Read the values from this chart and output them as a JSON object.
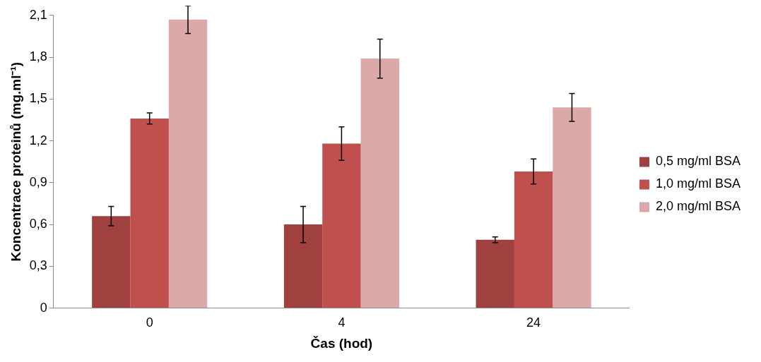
{
  "chart_data": {
    "type": "bar",
    "xlabel": "Čas (hod)",
    "ylabel": "Koncentrace proteinů (mg.ml⁻¹)",
    "categories": [
      "0",
      "4",
      "24"
    ],
    "series": [
      {
        "name": "0,5 mg/ml BSA",
        "color": "#a0403f",
        "values": [
          0.66,
          0.6,
          0.49
        ],
        "errors": [
          0.07,
          0.13,
          0.02
        ]
      },
      {
        "name": "1,0 mg/ml BSA",
        "color": "#c0504d",
        "values": [
          1.36,
          1.18,
          0.98
        ],
        "errors": [
          0.04,
          0.12,
          0.09
        ]
      },
      {
        "name": "2,0 mg/ml BSA",
        "color": "#dba9a8",
        "values": [
          2.07,
          1.79,
          1.44
        ],
        "errors": [
          0.1,
          0.14,
          0.1
        ]
      }
    ],
    "ylim": [
      0,
      2.1
    ],
    "yticks": [
      {
        "value": 0,
        "label": "0"
      },
      {
        "value": 0.3,
        "label": "0,3"
      },
      {
        "value": 0.6,
        "label": "0,6"
      },
      {
        "value": 0.9,
        "label": "0,9"
      },
      {
        "value": 1.2,
        "label": "1,2"
      },
      {
        "value": 1.5,
        "label": "1,5"
      },
      {
        "value": 1.8,
        "label": "1,8"
      },
      {
        "value": 2.1,
        "label": "2,1"
      }
    ],
    "grid": false,
    "legend": "right"
  }
}
